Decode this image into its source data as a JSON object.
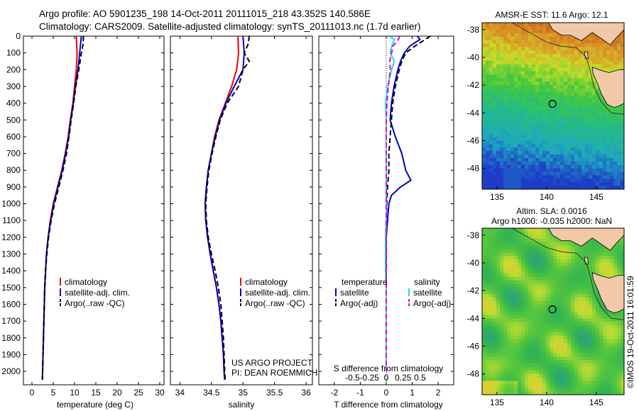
{
  "header": {
    "line1": "Argo profile: AO 5901235_198 14-Oct-2011 20111015_218 43.352S 140.586E",
    "line2": "Climatology: CARS2009. Satellite-adjusted climatology: synTS_20111013.nc (1.7d earlier)"
  },
  "credit": {
    "project": "US ARGO PROJECT",
    "pi": "PI: DEAN ROEMMICH",
    "stamp": "©IMOS 19-Oct-2011 16:01:59"
  },
  "colors": {
    "red": "#ee0000",
    "blue": "#0000cc",
    "black": "#000000",
    "cyan": "#22dddd",
    "magenta": "#dd00dd"
  },
  "chart_data": [
    {
      "id": "temperature",
      "type": "line",
      "xlabel": "temperature (deg C)",
      "xlim": [
        -2,
        31
      ],
      "xticks": [
        0,
        5,
        10,
        15,
        20,
        25,
        30
      ],
      "ylim": [
        0,
        2080
      ],
      "yticks": [
        0,
        100,
        200,
        300,
        400,
        500,
        600,
        700,
        800,
        900,
        1000,
        1100,
        1200,
        1300,
        1400,
        1500,
        1600,
        1700,
        1800,
        1900,
        2000
      ],
      "legend": [
        "climatology",
        "satellite-adj. clim.",
        "Argo(..raw -QC)"
      ],
      "legend_position": "lower-right",
      "series": [
        {
          "name": "climatology",
          "color": "red",
          "dash": false,
          "depth": [
            0,
            100,
            200,
            300,
            400,
            500,
            600,
            700,
            800,
            900,
            1000,
            1100,
            1200,
            1300,
            1400,
            1500,
            1600,
            1700,
            1800,
            1900,
            2000,
            2050
          ],
          "values": [
            10.4,
            10.6,
            10.4,
            10.0,
            9.6,
            9.0,
            8.5,
            7.8,
            7.0,
            6.0,
            5.0,
            4.3,
            3.8,
            3.4,
            3.2,
            3.0,
            2.9,
            2.8,
            2.7,
            2.6,
            2.5,
            2.45
          ]
        },
        {
          "name": "satellite-adj. clim.",
          "color": "blue",
          "dash": false,
          "depth": [
            0,
            100,
            200,
            300,
            400,
            500,
            600,
            700,
            800,
            900,
            1000,
            1100,
            1200,
            1300,
            1400,
            1500,
            1600,
            1700,
            1800,
            1900,
            2000,
            2050
          ],
          "values": [
            11.6,
            11.2,
            10.8,
            10.2,
            9.7,
            9.1,
            8.6,
            7.9,
            7.1,
            6.1,
            5.1,
            4.4,
            3.8,
            3.4,
            3.2,
            3.0,
            2.9,
            2.8,
            2.7,
            2.6,
            2.5,
            2.45
          ]
        },
        {
          "name": "Argo(..raw -QC)",
          "color": "black",
          "dash": true,
          "depth": [
            0,
            50,
            100,
            200,
            300,
            400,
            500,
            600,
            700,
            800,
            900,
            1000,
            1100,
            1200,
            1300,
            1400,
            1500,
            1600,
            1700,
            1800,
            1900,
            2000,
            2050
          ],
          "values": [
            12.1,
            12.0,
            11.6,
            11.0,
            10.3,
            9.8,
            9.2,
            8.7,
            8.1,
            7.3,
            6.3,
            5.3,
            4.5,
            3.9,
            3.5,
            3.2,
            3.0,
            2.9,
            2.8,
            2.7,
            2.6,
            2.5,
            2.45
          ]
        }
      ]
    },
    {
      "id": "salinity",
      "type": "line",
      "xlabel": "salinity",
      "xlim": [
        33.85,
        36.1
      ],
      "xticks": [
        34,
        34.5,
        35,
        35.5,
        36
      ],
      "ylim": [
        0,
        2080
      ],
      "legend": [
        "climatology",
        "satellite-adj. clim.",
        "Argo(..raw -QC)"
      ],
      "legend_position": "lower-right",
      "series": [
        {
          "name": "climatology",
          "color": "red",
          "dash": false,
          "depth": [
            0,
            100,
            200,
            300,
            400,
            500,
            600,
            700,
            800,
            900,
            1000,
            1100,
            1200,
            1300,
            1400,
            1500,
            1600,
            1700,
            1800,
            1900,
            2000,
            2050
          ],
          "values": [
            34.92,
            34.93,
            34.9,
            34.82,
            34.72,
            34.62,
            34.55,
            34.5,
            34.45,
            34.42,
            34.4,
            34.41,
            34.44,
            34.48,
            34.53,
            34.58,
            34.62,
            34.65,
            34.67,
            34.69,
            34.7,
            34.71
          ]
        },
        {
          "name": "satellite-adj. clim.",
          "color": "blue",
          "dash": false,
          "depth": [
            0,
            100,
            200,
            300,
            400,
            500,
            600,
            700,
            800,
            900,
            1000,
            1100,
            1200,
            1300,
            1400,
            1500,
            1600,
            1700,
            1800,
            1900,
            2000,
            2050
          ],
          "values": [
            35.0,
            35.02,
            35.0,
            34.86,
            34.73,
            34.63,
            34.56,
            34.5,
            34.45,
            34.42,
            34.4,
            34.41,
            34.44,
            34.48,
            34.53,
            34.58,
            34.62,
            34.65,
            34.67,
            34.69,
            34.7,
            34.71
          ]
        },
        {
          "name": "Argo(..raw -QC)",
          "color": "black",
          "dash": true,
          "depth": [
            0,
            50,
            100,
            150,
            200,
            300,
            400,
            500,
            600,
            700,
            800,
            900,
            1000,
            1100,
            1200,
            1300,
            1400,
            1500,
            1600,
            1700,
            1800,
            1900,
            2000,
            2050
          ],
          "values": [
            35.1,
            35.08,
            35.02,
            35.1,
            35.0,
            34.93,
            34.75,
            34.64,
            34.57,
            34.51,
            34.46,
            34.43,
            34.41,
            34.42,
            34.45,
            34.5,
            34.56,
            34.61,
            34.65,
            34.67,
            34.69,
            34.7,
            34.71,
            34.72
          ]
        }
      ]
    },
    {
      "id": "difference",
      "type": "line",
      "xlabel": "T difference from climatology",
      "xlabel_top": "S difference from climatology",
      "xlim": [
        -2.6,
        2.6
      ],
      "xticks": [
        -2,
        -1,
        0,
        1,
        2
      ],
      "xticks_secondary": [
        -0.5,
        -0.25,
        0,
        0.25,
        0.5
      ],
      "xticklabels_secondary": [
        "-0.5",
        "-0.25",
        "0",
        "0.25",
        "0.5"
      ],
      "ylim": [
        0,
        2080
      ],
      "legend": {
        "temperature_title": "temperature",
        "salinity_title": "salinity",
        "temperature": [
          "satellite",
          "Argo(-adj)"
        ],
        "salinity": [
          "satellite",
          "Argo(-adj)"
        ]
      },
      "legend_position": "lower-center",
      "series": [
        {
          "name": "T satellite",
          "color": "blue",
          "dash": false,
          "depth": [
            0,
            20,
            60,
            100,
            150,
            200,
            300,
            400,
            500,
            600,
            700,
            800,
            860,
            900,
            950,
            1000,
            1100,
            1200,
            1300,
            1400,
            1500,
            1600,
            1700,
            1800,
            1900,
            2000
          ],
          "values": [
            1.2,
            1.3,
            0.9,
            0.7,
            0.55,
            0.45,
            0.3,
            0.2,
            0.15,
            0.35,
            0.6,
            0.75,
            0.95,
            0.55,
            0.2,
            0.1,
            0.05,
            0,
            0,
            0,
            0,
            0,
            0,
            0,
            0,
            0
          ]
        },
        {
          "name": "T Argo(-adj)",
          "color": "black",
          "dash": true,
          "depth": [
            0,
            20,
            60,
            100,
            150,
            200,
            300,
            400,
            500,
            600,
            700,
            800,
            900,
            1000,
            1100,
            1200,
            1300,
            1400,
            1500,
            1600,
            1700,
            1800,
            1900,
            2000
          ],
          "values": [
            1.7,
            1.5,
            1.1,
            0.75,
            0.6,
            0.5,
            0.35,
            0.25,
            0.2,
            0.15,
            0.1,
            0.1,
            0.05,
            0.02,
            0,
            0,
            0,
            0,
            0,
            0,
            0,
            0,
            0,
            0
          ]
        },
        {
          "name": "S satellite",
          "color": "cyan",
          "dash": false,
          "depth": [
            0,
            20,
            60,
            100,
            150,
            200,
            300,
            400,
            500,
            600,
            700,
            800,
            900,
            1000,
            1100,
            1200,
            1300,
            1400,
            1500,
            1600,
            1700,
            1800,
            1900,
            2000
          ],
          "values": [
            0.05,
            0.12,
            0.08,
            0.06,
            0.12,
            0.08,
            0.02,
            -0.01,
            0.0,
            0.0,
            0.0,
            0.0,
            0.0,
            0.0,
            0.0,
            -0.01,
            -0.01,
            -0.01,
            0.0,
            0.0,
            0.0,
            0.0,
            0.0,
            0.0
          ]
        },
        {
          "name": "S Argo(-adj)",
          "color": "magenta",
          "dash": true,
          "depth": [
            0,
            20,
            60,
            100,
            150,
            200,
            300,
            400,
            500,
            600,
            700,
            800,
            900,
            1000,
            1100,
            1200,
            1300,
            1400,
            1500,
            1600,
            1700,
            1800,
            1900,
            2000
          ],
          "values": [
            0.2,
            0.18,
            0.1,
            0.08,
            0.05,
            0.06,
            0.03,
            0.01,
            0.0,
            0.0,
            0.0,
            0.0,
            0.0,
            0.0,
            0.0,
            0.0,
            0.0,
            0.0,
            0.0,
            0.0,
            0.0,
            0.0,
            0.0,
            0.0
          ]
        }
      ]
    },
    {
      "id": "sst-map",
      "type": "heatmap",
      "title": "AMSR-E SST: 11.6 Argo: 12.1",
      "xlim": [
        133.5,
        147.8
      ],
      "ylim": [
        -49.5,
        -37.5
      ],
      "xticks": [
        135,
        140,
        145
      ],
      "yticks": [
        -38,
        -40,
        -42,
        -44,
        -46,
        -48
      ],
      "marker": {
        "lon": 140.586,
        "lat": -43.352
      }
    },
    {
      "id": "sla-map",
      "type": "heatmap",
      "title_line1": "Altim. SLA: 0.0016",
      "title_line2": "Argo h1000: -0.035 h2000: NaN",
      "xlim": [
        133.5,
        147.8
      ],
      "ylim": [
        -49.5,
        -37.5
      ],
      "xticks": [
        135,
        140,
        145
      ],
      "yticks": [
        -38,
        -40,
        -42,
        -44,
        -46,
        -48
      ],
      "marker": {
        "lon": 140.586,
        "lat": -43.352
      }
    }
  ]
}
